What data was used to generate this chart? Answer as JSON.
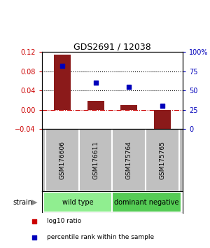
{
  "title": "GDS2691 / 12038",
  "samples": [
    "GSM176606",
    "GSM176611",
    "GSM175764",
    "GSM175765"
  ],
  "bar_values": [
    0.115,
    0.018,
    0.01,
    -0.045
  ],
  "dot_values_pct": [
    82,
    60,
    55,
    30
  ],
  "bar_color": "#8B1A1A",
  "dot_color": "#0000BB",
  "ylim_left": [
    -0.04,
    0.12
  ],
  "ylim_right": [
    0,
    100
  ],
  "yticks_left": [
    -0.04,
    0.0,
    0.04,
    0.08,
    0.12
  ],
  "yticks_right": [
    0,
    25,
    50,
    75,
    100
  ],
  "hlines": [
    0.08,
    0.04
  ],
  "groups": [
    {
      "label": "wild type",
      "color": "#90EE90"
    },
    {
      "label": "dominant negative",
      "color": "#55CC55"
    }
  ],
  "strain_label": "strain",
  "legend": [
    {
      "color": "#CC0000",
      "label": "log10 ratio"
    },
    {
      "color": "#0000BB",
      "label": "percentile rank within the sample"
    }
  ],
  "background_color": "#ffffff",
  "zero_line_color": "#CC0000",
  "label_area_color": "#C0C0C0"
}
